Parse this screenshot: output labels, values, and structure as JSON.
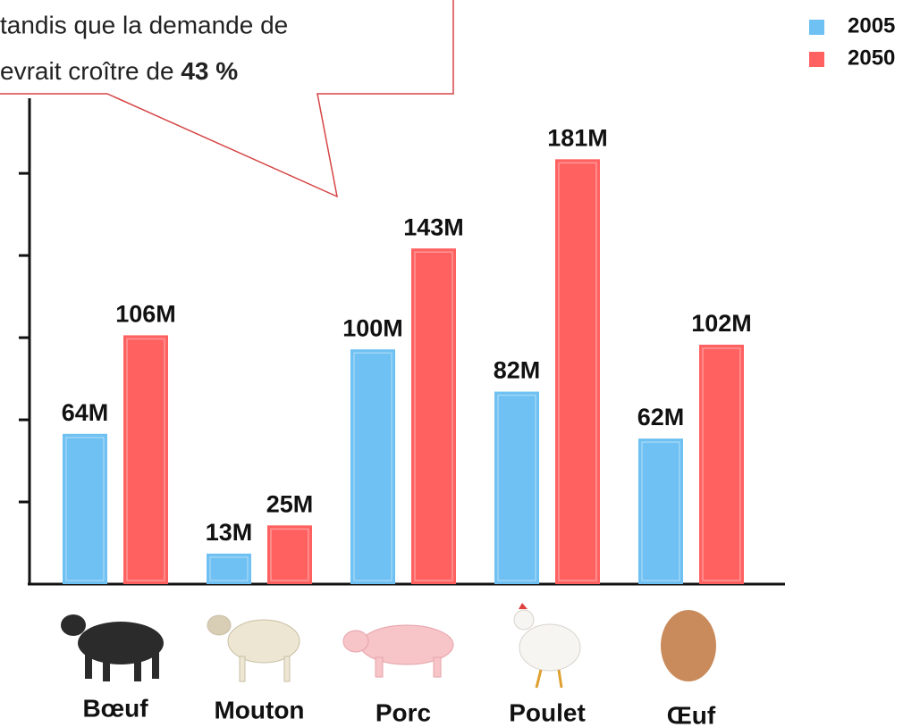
{
  "chart_data": {
    "type": "bar",
    "annotation": {
      "lines": [
        "tandis que la demande de",
        "evrait croître de "
      ],
      "emphasis": "43 %"
    },
    "categories": [
      "Bœuf",
      "Mouton",
      "Porc",
      "Poulet",
      "Œuf"
    ],
    "series": [
      {
        "name": "2005",
        "color": "#6ec1f2",
        "values": [
          64,
          13,
          100,
          82,
          62
        ],
        "value_labels": [
          "64M",
          "13M",
          "100M",
          "82M",
          "62M"
        ]
      },
      {
        "name": "2050",
        "color": "#ff6161",
        "values": [
          106,
          25,
          143,
          181,
          102
        ],
        "value_labels": [
          "106M",
          "25M",
          "143M",
          "181M",
          "102M"
        ]
      }
    ],
    "ylim": [
      0,
      207
    ],
    "yticks": [
      35,
      70,
      105,
      140,
      175
    ]
  }
}
